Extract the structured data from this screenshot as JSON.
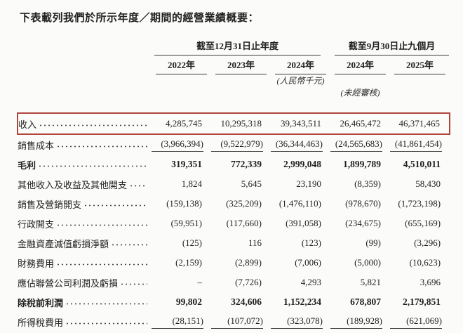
{
  "page": {
    "title": "下表載列我們於所示年度／期間的經營業績概要："
  },
  "table": {
    "highlight_color": "#b0453c",
    "col_groups": [
      {
        "label": "截至12月31日止年度",
        "span": 3
      },
      {
        "label": "截至9月30日止九個月",
        "span": 2
      }
    ],
    "year_headers": [
      "2022年",
      "2023年",
      "2024年",
      "2024年",
      "2025年"
    ],
    "unit_note": "(人民幣千元)",
    "audit_note": "(未經審核)",
    "rows": [
      {
        "label": "收入",
        "values": [
          "4,285,745",
          "10,295,318",
          "39,343,511",
          "26,465,472",
          "46,371,465"
        ],
        "highlight": true
      },
      {
        "label": "銷售成本",
        "values": [
          "(3,966,394)",
          "(9,522,979)",
          "(36,344,463)",
          "(24,565,683)",
          "(41,861,454)"
        ],
        "rule_below": true
      },
      {
        "label": "毛利",
        "values": [
          "319,351",
          "772,339",
          "2,999,048",
          "1,899,789",
          "4,510,011"
        ],
        "bold": true
      },
      {
        "label": "其他收入及收益及其他開支",
        "values": [
          "1,824",
          "5,645",
          "23,190",
          "(8,359)",
          "58,430"
        ]
      },
      {
        "label": "銷售及營銷開支",
        "values": [
          "(159,138)",
          "(325,209)",
          "(1,476,110)",
          "(978,670)",
          "(1,723,198)"
        ]
      },
      {
        "label": "行政開支",
        "values": [
          "(59,951)",
          "(117,660)",
          "(391,058)",
          "(234,675)",
          "(655,169)"
        ]
      },
      {
        "label": "金融資產減值虧損淨額",
        "values": [
          "(125)",
          "116",
          "(123)",
          "(99)",
          "(3,296)"
        ]
      },
      {
        "label": "財務費用",
        "values": [
          "(2,159)",
          "(2,899)",
          "(7,006)",
          "(5,000)",
          "(10,623)"
        ]
      },
      {
        "label": "應佔聯營公司利潤及虧損",
        "values": [
          "–",
          "(7,726)",
          "4,293",
          "5,821",
          "3,696"
        ]
      },
      {
        "label": "除稅前利潤",
        "values": [
          "99,802",
          "324,606",
          "1,152,234",
          "678,807",
          "2,179,851"
        ],
        "bold": true
      },
      {
        "label": "所得稅費用",
        "values": [
          "(28,151)",
          "(107,072)",
          "(323,078)",
          "(189,928)",
          "(621,069)"
        ],
        "rule_below": true
      }
    ]
  }
}
